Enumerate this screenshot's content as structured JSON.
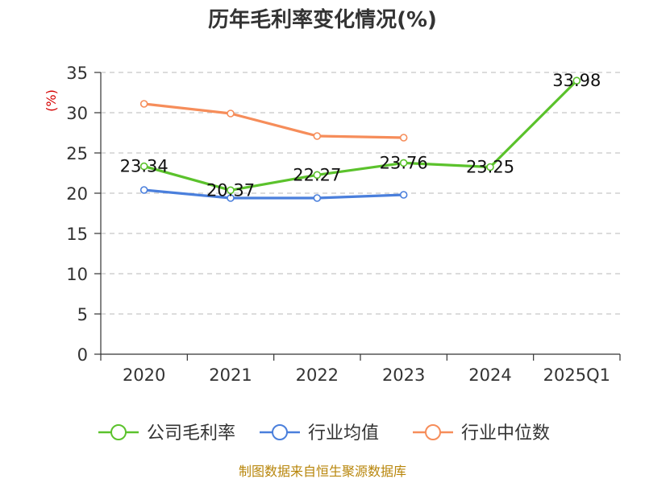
{
  "chart_data": {
    "type": "line",
    "title": "历年毛利率变化情况(%)",
    "ylabel": "(%)",
    "xlabel": "",
    "categories": [
      "2020",
      "2021",
      "2022",
      "2023",
      "2024",
      "2025Q1"
    ],
    "ylim": [
      0,
      35
    ],
    "yticks": [
      0,
      5,
      10,
      15,
      20,
      25,
      30,
      35
    ],
    "grid": "horizontal dashed",
    "legend_position": "bottom",
    "series": [
      {
        "name": "公司毛利率",
        "color": "#5bc22c",
        "values": [
          23.34,
          20.37,
          22.27,
          23.76,
          23.25,
          33.98
        ],
        "labels": [
          "23.34",
          "20.37",
          "22.27",
          "23.76",
          "23.25",
          "33.98"
        ]
      },
      {
        "name": "行业均值",
        "color": "#4a7fdc",
        "values": [
          20.4,
          19.4,
          19.4,
          19.8,
          null,
          null
        ]
      },
      {
        "name": "行业中位数",
        "color": "#f68d5a",
        "values": [
          31.1,
          29.9,
          27.1,
          26.9,
          null,
          null
        ]
      }
    ]
  },
  "footer": {
    "source": "制图数据来自恒生聚源数据库"
  }
}
